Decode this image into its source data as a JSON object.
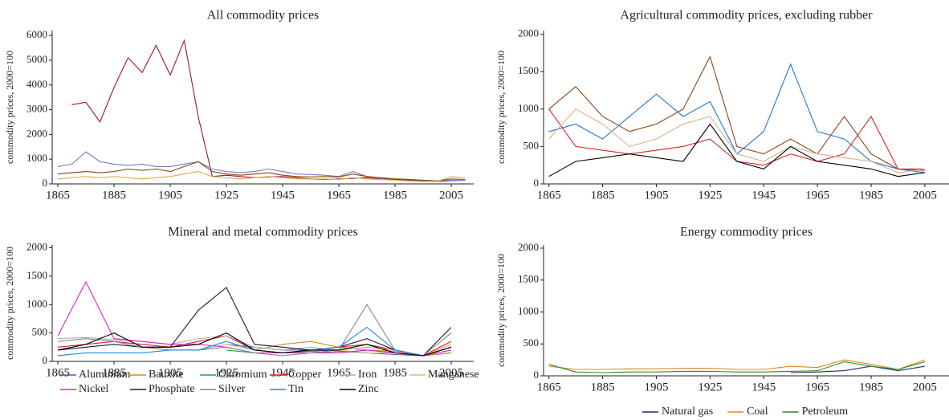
{
  "chart_data": [
    {
      "type": "line",
      "title": "All commodity prices",
      "ylabel": "commodity prices, 2000=100",
      "x": [
        1865,
        1870,
        1875,
        1880,
        1885,
        1890,
        1895,
        1900,
        1905,
        1910,
        1915,
        1920,
        1925,
        1930,
        1935,
        1940,
        1945,
        1950,
        1955,
        1960,
        1965,
        1970,
        1975,
        1980,
        1985,
        1990,
        1995,
        2000,
        2005,
        2010
      ],
      "xlim": [
        1863,
        2013
      ],
      "xticks": [
        1865,
        1885,
        1905,
        1925,
        1945,
        1965,
        1985,
        2005
      ],
      "ylim": [
        0,
        6200
      ],
      "yticks": [
        0,
        1000,
        2000,
        3000,
        4000,
        5000,
        6000
      ],
      "series": [
        {
          "color": "#a50f3c",
          "values": [
            null,
            3200,
            3300,
            2500,
            3900,
            5100,
            4500,
            5600,
            4400,
            5800,
            2700,
            300,
            350,
            300,
            250,
            280,
            300,
            250,
            200,
            180,
            200,
            220,
            250,
            200,
            180,
            150,
            120,
            100,
            130,
            150
          ]
        },
        {
          "color": "#7b7bc4",
          "values": [
            700,
            800,
            1300,
            900,
            800,
            750,
            800,
            700,
            700,
            800,
            900,
            600,
            500,
            450,
            500,
            600,
            500,
            400,
            380,
            350,
            300,
            500,
            300,
            250,
            200,
            180,
            150,
            120,
            150,
            150
          ]
        },
        {
          "color": "#8b4513",
          "values": [
            400,
            450,
            500,
            450,
            500,
            600,
            550,
            600,
            500,
            700,
            900,
            500,
            400,
            350,
            400,
            450,
            350,
            300,
            280,
            300,
            280,
            400,
            300,
            250,
            200,
            180,
            150,
            120,
            200,
            180
          ]
        },
        {
          "color": "#d4b24c",
          "values": [
            200,
            250,
            300,
            250,
            300,
            250,
            200,
            250,
            300,
            400,
            500,
            300,
            250,
            200,
            250,
            300,
            250,
            200,
            200,
            200,
            180,
            250,
            200,
            180,
            150,
            120,
            100,
            100,
            300,
            250
          ]
        }
      ]
    },
    {
      "type": "line",
      "title": "Agricultural commodity prices, excluding rubber",
      "ylabel": "commodity prices, 2000=100",
      "x": [
        1865,
        1875,
        1885,
        1895,
        1905,
        1915,
        1925,
        1935,
        1945,
        1955,
        1965,
        1975,
        1985,
        1995,
        2005
      ],
      "xlim": [
        1863,
        2014
      ],
      "xticks": [
        1865,
        1885,
        1905,
        1925,
        1945,
        1965,
        1985,
        2005
      ],
      "ylim": [
        0,
        2050
      ],
      "yticks": [
        0,
        500,
        1000,
        1500,
        2000
      ],
      "series": [
        {
          "color": "#8b4513",
          "values": [
            1000,
            1300,
            900,
            700,
            800,
            1000,
            1700,
            500,
            400,
            600,
            400,
            900,
            400,
            200,
            180
          ]
        },
        {
          "color": "#1f77d0",
          "values": [
            700,
            800,
            600,
            900,
            1200,
            900,
            1100,
            400,
            700,
            1600,
            700,
            600,
            300,
            200,
            150
          ]
        },
        {
          "color": "#d62728",
          "values": [
            1000,
            500,
            450,
            400,
            450,
            500,
            600,
            300,
            250,
            400,
            300,
            400,
            900,
            200,
            200
          ]
        },
        {
          "color": "#d2b48c",
          "values": [
            600,
            1000,
            800,
            500,
            600,
            800,
            900,
            400,
            300,
            500,
            400,
            350,
            300,
            150,
            200
          ]
        },
        {
          "color": "#000000",
          "values": [
            100,
            300,
            350,
            400,
            350,
            300,
            800,
            300,
            200,
            500,
            300,
            250,
            200,
            100,
            150
          ]
        }
      ]
    },
    {
      "type": "line",
      "title": "Mineral and metal commodity prices",
      "ylabel": "commodity prices, 2000=100",
      "x": [
        1865,
        1875,
        1885,
        1895,
        1905,
        1915,
        1925,
        1935,
        1945,
        1955,
        1965,
        1975,
        1985,
        1995,
        2005
      ],
      "xlim": [
        1863,
        2013
      ],
      "xticks": [
        1865,
        1885,
        1905,
        1925,
        1945,
        1965,
        1985,
        2005
      ],
      "ylim": [
        0,
        2050
      ],
      "yticks": [
        0,
        500,
        1000,
        1500,
        2000
      ],
      "series": [
        {
          "name": "Aluminium",
          "color": "#5b5bb0",
          "values": [
            null,
            null,
            null,
            null,
            null,
            null,
            300,
            250,
            200,
            200,
            180,
            150,
            120,
            100,
            150
          ]
        },
        {
          "name": "Bauxite",
          "color": "#d9891e",
          "values": [
            null,
            null,
            null,
            null,
            null,
            null,
            null,
            200,
            300,
            350,
            250,
            200,
            180,
            100,
            150
          ]
        },
        {
          "name": "Chromium",
          "color": "#2ca02c",
          "values": [
            null,
            null,
            null,
            null,
            null,
            null,
            200,
            150,
            150,
            180,
            150,
            200,
            150,
            100,
            250
          ]
        },
        {
          "name": "Copper",
          "color": "#e31a1c",
          "values": [
            250,
            300,
            350,
            300,
            250,
            350,
            450,
            200,
            150,
            200,
            250,
            300,
            200,
            100,
            350
          ]
        },
        {
          "name": "Iron",
          "color": "#b0b0b0",
          "values": [
            400,
            420,
            380,
            350,
            300,
            400,
            450,
            250,
            200,
            250,
            200,
            250,
            200,
            100,
            300
          ]
        },
        {
          "name": "Manganese",
          "color": "#d8c07a",
          "values": [
            null,
            null,
            null,
            250,
            200,
            200,
            300,
            200,
            150,
            150,
            200,
            150,
            150,
            100,
            300
          ]
        },
        {
          "name": "Nickel",
          "color": "#e020d0",
          "values": [
            450,
            1400,
            400,
            350,
            300,
            300,
            250,
            150,
            150,
            150,
            150,
            200,
            150,
            100,
            200
          ]
        },
        {
          "name": "Phosphate",
          "color": "#1a1a3a",
          "values": [
            200,
            250,
            300,
            250,
            250,
            900,
            1300,
            300,
            250,
            200,
            250,
            400,
            200,
            100,
            600
          ]
        },
        {
          "name": "Silver",
          "color": "#7f8c7f",
          "values": [
            350,
            400,
            350,
            250,
            200,
            200,
            250,
            150,
            100,
            150,
            200,
            1000,
            200,
            100,
            500
          ]
        },
        {
          "name": "Tin",
          "color": "#1e88e5",
          "values": [
            100,
            150,
            150,
            150,
            200,
            200,
            350,
            200,
            150,
            200,
            250,
            600,
            200,
            100,
            250
          ]
        },
        {
          "name": "Zinc",
          "color": "#000000",
          "values": [
            200,
            300,
            500,
            250,
            250,
            300,
            500,
            200,
            150,
            200,
            200,
            300,
            150,
            100,
            250
          ]
        }
      ]
    },
    {
      "type": "line",
      "title": "Energy commodity prices",
      "ylabel": "commodity prices, 2000=100",
      "x": [
        1865,
        1875,
        1885,
        1895,
        1905,
        1915,
        1925,
        1935,
        1945,
        1955,
        1965,
        1975,
        1985,
        1995,
        2005
      ],
      "xlim": [
        1863,
        2014
      ],
      "xticks": [
        1865,
        1885,
        1905,
        1925,
        1945,
        1965,
        1985,
        2005
      ],
      "ylim": [
        0,
        2050
      ],
      "yticks": [
        0,
        500,
        1000,
        1500,
        2000
      ],
      "series": [
        {
          "name": "Natural gas",
          "color": "#1f2f6b",
          "values": [
            null,
            null,
            null,
            null,
            null,
            null,
            null,
            null,
            null,
            50,
            60,
            80,
            150,
            80,
            150
          ]
        },
        {
          "name": "Coal",
          "color": "#d98a1e",
          "values": [
            150,
            100,
            100,
            110,
            110,
            120,
            120,
            100,
            100,
            150,
            130,
            250,
            180,
            100,
            250
          ]
        },
        {
          "name": "Petroleum",
          "color": "#2e8b2e",
          "values": [
            180,
            60,
            50,
            60,
            60,
            70,
            70,
            60,
            60,
            70,
            80,
            220,
            150,
            100,
            220
          ]
        }
      ]
    }
  ]
}
